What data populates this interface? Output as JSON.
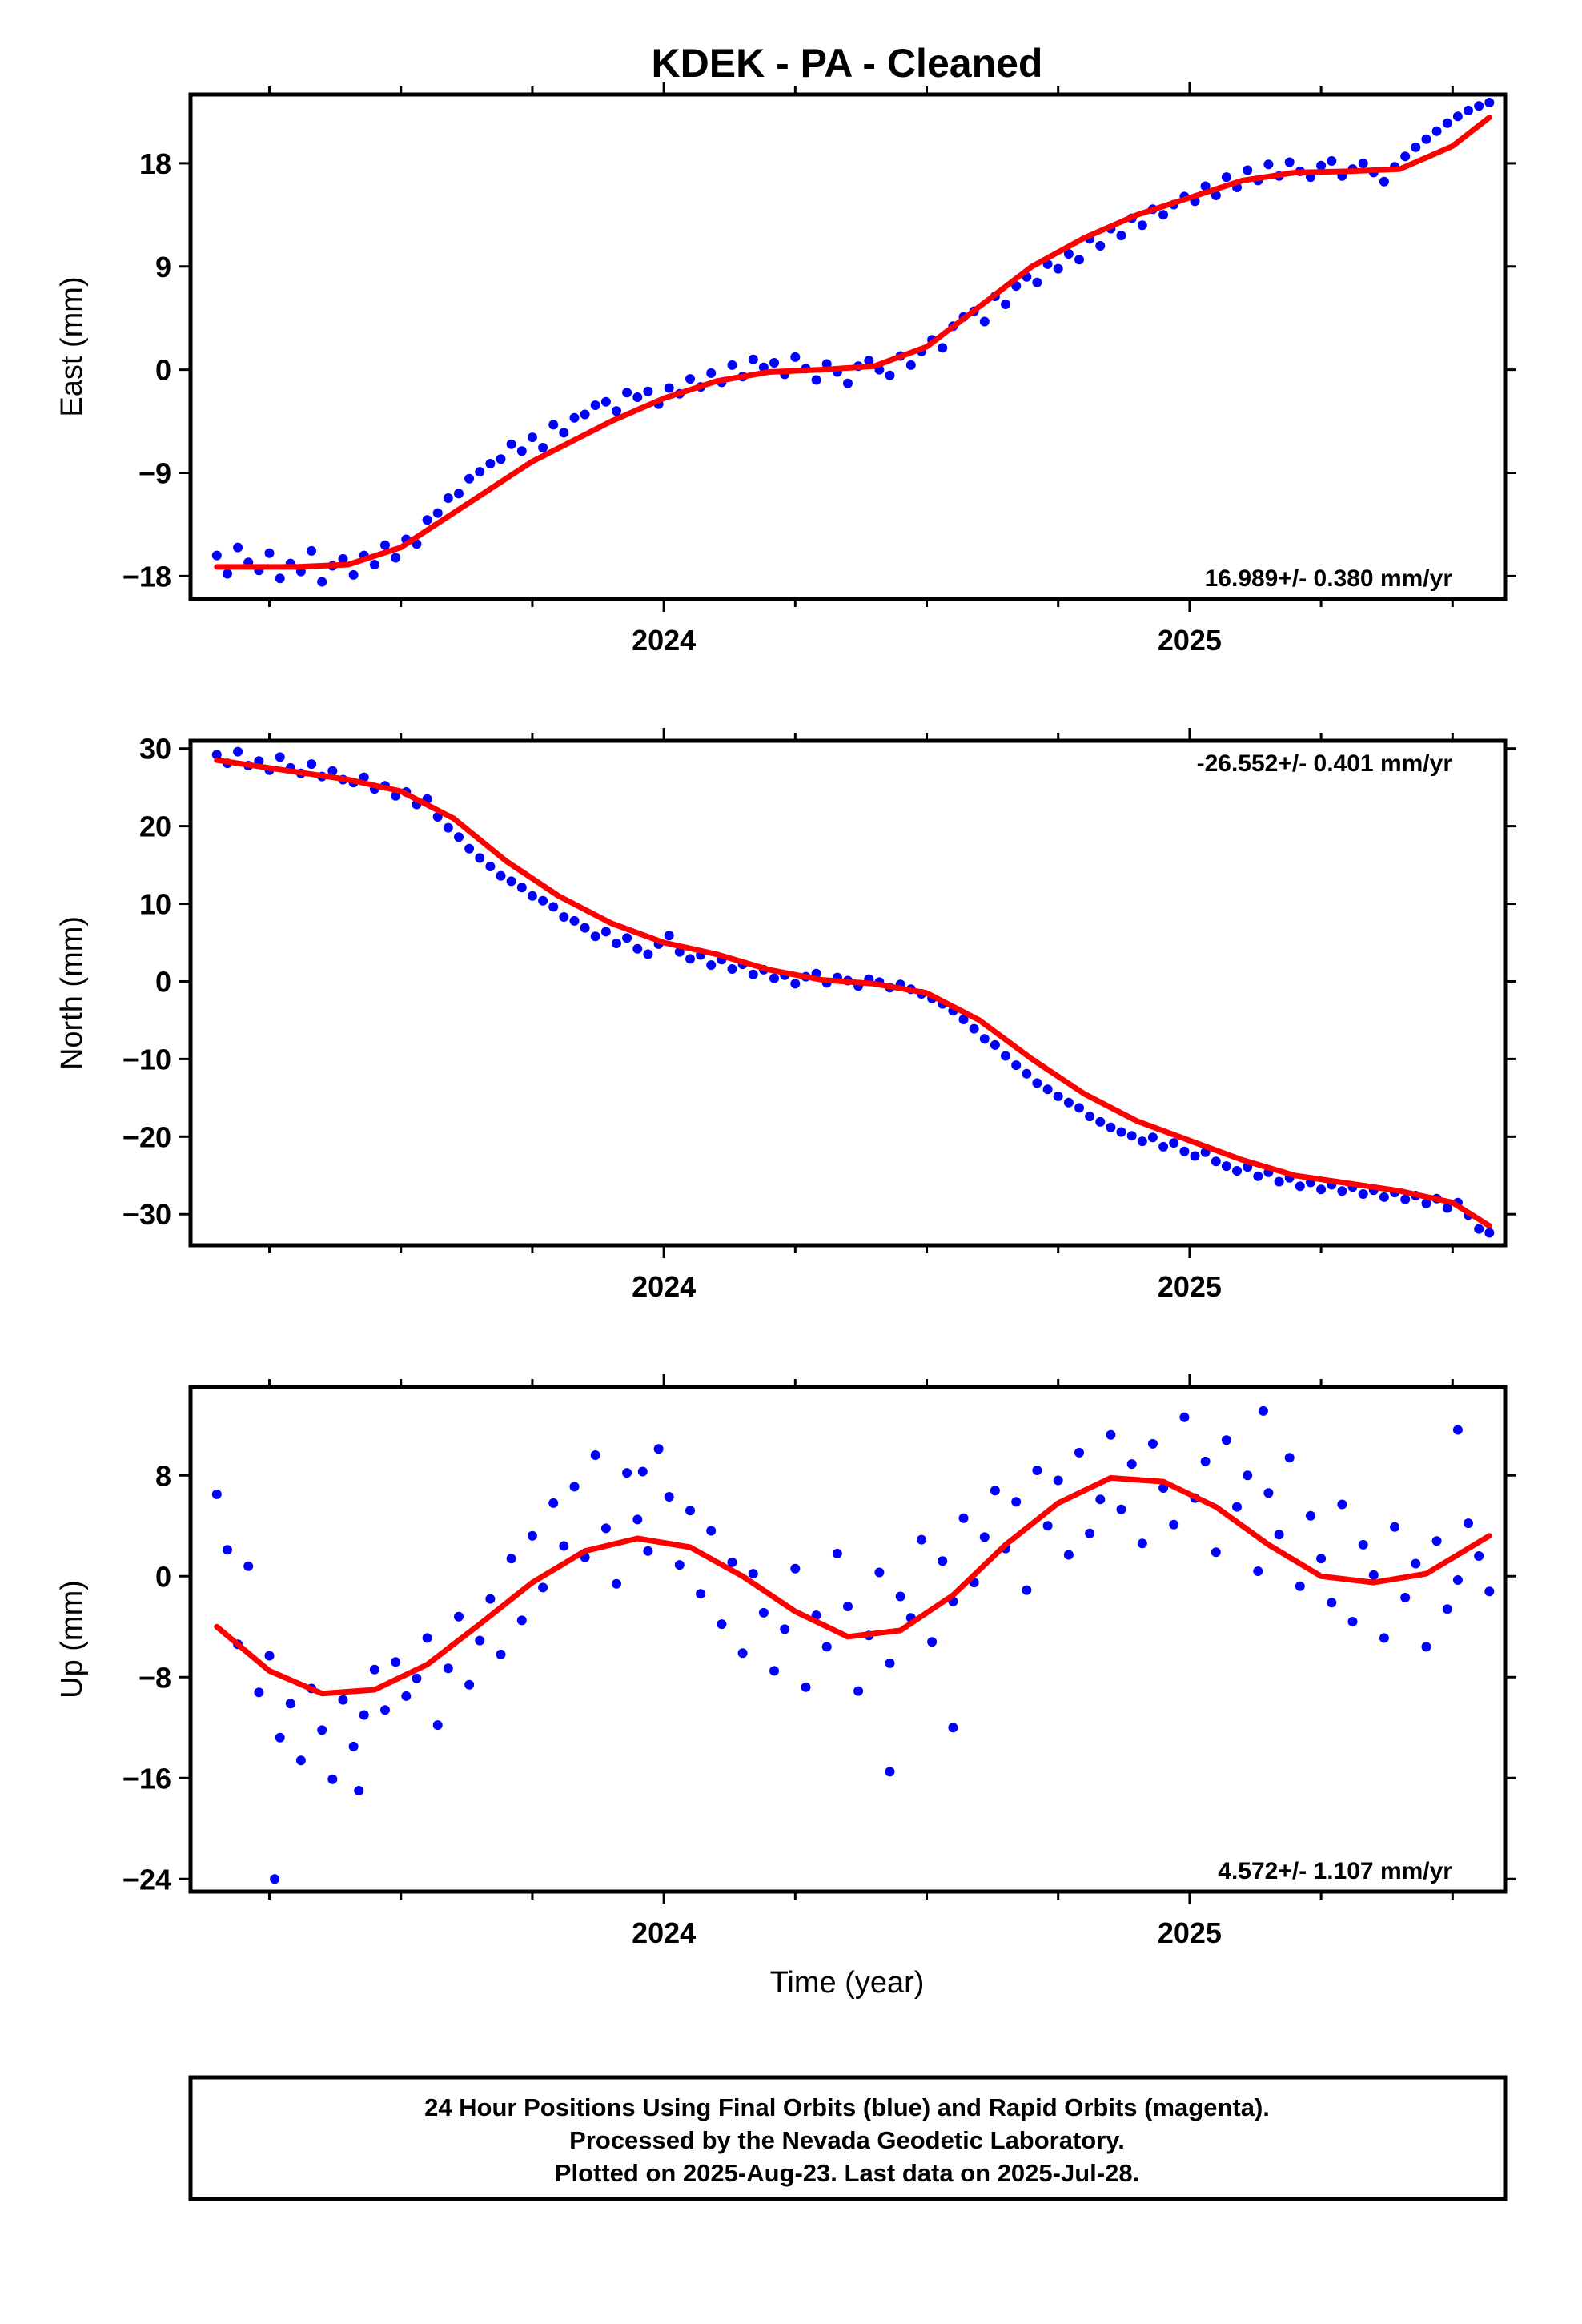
{
  "title": "KDEK  - PA - Cleaned",
  "colors": {
    "points": "#0000ff",
    "fit": "#ff0000",
    "frame": "#000000"
  },
  "chart_data": [
    {
      "type": "scatter",
      "ylabel": "East (mm)",
      "xlabel": "",
      "xlim": [
        2023.1,
        2025.6
      ],
      "ylim": [
        -20,
        24
      ],
      "yticks": [
        -18,
        -9,
        0,
        9,
        18
      ],
      "ytick_labels": [
        "−18",
        "−9",
        "0",
        "9",
        "18"
      ],
      "xticks": [
        2024,
        2025
      ],
      "xtick_labels": [
        "2024",
        "2025"
      ],
      "rate_label": "16.989+/- 0.380 mm/yr",
      "rate_position": "bottom-right",
      "fit": {
        "x": [
          2023.15,
          2023.3,
          2023.4,
          2023.5,
          2023.6,
          2023.75,
          2023.9,
          2024.0,
          2024.1,
          2024.2,
          2024.3,
          2024.4,
          2024.5,
          2024.6,
          2024.7,
          2024.8,
          2024.9,
          2025.0,
          2025.1,
          2025.2,
          2025.3,
          2025.4,
          2025.5,
          2025.57
        ],
        "y": [
          -17.2,
          -17.2,
          -17.0,
          -15.5,
          -12.5,
          -8.0,
          -4.5,
          -2.5,
          -1.0,
          -0.2,
          0.0,
          0.3,
          2.0,
          5.5,
          9.0,
          11.5,
          13.5,
          15.0,
          16.5,
          17.2,
          17.3,
          17.5,
          19.5,
          22.0
        ]
      },
      "points": {
        "x": [
          2023.15,
          2023.17,
          2023.19,
          2023.21,
          2023.23,
          2023.25,
          2023.27,
          2023.29,
          2023.31,
          2023.33,
          2023.35,
          2023.37,
          2023.39,
          2023.41,
          2023.43,
          2023.45,
          2023.47,
          2023.49,
          2023.51,
          2023.53,
          2023.55,
          2023.57,
          2023.59,
          2023.61,
          2023.63,
          2023.65,
          2023.67,
          2023.69,
          2023.71,
          2023.73,
          2023.75,
          2023.77,
          2023.79,
          2023.81,
          2023.83,
          2023.85,
          2023.87,
          2023.89,
          2023.91,
          2023.93,
          2023.95,
          2023.97,
          2023.99,
          2024.01,
          2024.03,
          2024.05,
          2024.07,
          2024.09,
          2024.11,
          2024.13,
          2024.15,
          2024.17,
          2024.19,
          2024.21,
          2024.23,
          2024.25,
          2024.27,
          2024.29,
          2024.31,
          2024.33,
          2024.35,
          2024.37,
          2024.39,
          2024.41,
          2024.43,
          2024.45,
          2024.47,
          2024.49,
          2024.51,
          2024.53,
          2024.55,
          2024.57,
          2024.59,
          2024.61,
          2024.63,
          2024.65,
          2024.67,
          2024.69,
          2024.71,
          2024.73,
          2024.75,
          2024.77,
          2024.79,
          2024.81,
          2024.83,
          2024.85,
          2024.87,
          2024.89,
          2024.91,
          2024.93,
          2024.95,
          2024.97,
          2024.99,
          2025.01,
          2025.03,
          2025.05,
          2025.07,
          2025.09,
          2025.11,
          2025.13,
          2025.15,
          2025.17,
          2025.19,
          2025.21,
          2025.23,
          2025.25,
          2025.27,
          2025.29,
          2025.31,
          2025.33,
          2025.35,
          2025.37,
          2025.39,
          2025.41,
          2025.43,
          2025.45,
          2025.47,
          2025.49,
          2025.51,
          2025.53,
          2025.55,
          2025.57
        ],
        "y": [
          -16.2,
          -17.8,
          -15.5,
          -16.8,
          -17.5,
          -16.0,
          -18.2,
          -16.9,
          -17.6,
          -15.8,
          -18.5,
          -17.1,
          -16.5,
          -17.9,
          -16.2,
          -17.0,
          -15.3,
          -16.4,
          -14.8,
          -15.2,
          -13.1,
          -12.5,
          -11.2,
          -10.8,
          -9.5,
          -8.9,
          -8.2,
          -7.8,
          -6.5,
          -7.1,
          -5.9,
          -6.8,
          -4.8,
          -5.5,
          -4.2,
          -3.9,
          -3.1,
          -2.8,
          -3.6,
          -2.0,
          -2.4,
          -1.9,
          -3.0,
          -1.6,
          -2.1,
          -0.8,
          -1.5,
          -0.3,
          -1.1,
          0.4,
          -0.6,
          0.9,
          0.2,
          0.6,
          -0.4,
          1.1,
          0.1,
          -0.9,
          0.5,
          -0.2,
          -1.2,
          0.3,
          0.8,
          0.0,
          -0.5,
          1.2,
          0.4,
          1.6,
          2.6,
          1.9,
          3.8,
          4.6,
          5.1,
          4.2,
          6.4,
          5.7,
          7.3,
          8.1,
          7.6,
          9.2,
          8.8,
          10.1,
          9.6,
          11.4,
          10.8,
          12.3,
          11.7,
          13.2,
          12.6,
          14.0,
          13.5,
          14.4,
          15.1,
          14.7,
          16.0,
          15.2,
          16.8,
          15.9,
          17.4,
          16.5,
          17.9,
          16.9,
          18.1,
          17.3,
          16.8,
          17.8,
          18.2,
          16.9,
          17.5,
          18.0,
          17.2,
          16.4,
          17.7,
          18.6,
          19.4,
          20.1,
          20.8,
          21.5,
          22.1,
          22.6,
          23.0,
          23.3
        ]
      }
    },
    {
      "type": "scatter",
      "ylabel": "North (mm)",
      "xlabel": "",
      "xlim": [
        2023.1,
        2025.6
      ],
      "ylim": [
        -34,
        31
      ],
      "yticks": [
        -30,
        -20,
        -10,
        0,
        10,
        20,
        30
      ],
      "ytick_labels": [
        "−30",
        "−20",
        "−10",
        "0",
        "10",
        "20",
        "30"
      ],
      "xticks": [
        2024,
        2025
      ],
      "xtick_labels": [
        "2024",
        "2025"
      ],
      "rate_label": "-26.552+/- 0.401 mm/yr",
      "rate_position": "top-right",
      "fit": {
        "x": [
          2023.15,
          2023.3,
          2023.4,
          2023.5,
          2023.6,
          2023.7,
          2023.8,
          2023.9,
          2024.0,
          2024.1,
          2024.2,
          2024.3,
          2024.4,
          2024.5,
          2024.6,
          2024.7,
          2024.8,
          2024.9,
          2025.0,
          2025.1,
          2025.2,
          2025.3,
          2025.4,
          2025.5,
          2025.57
        ],
        "y": [
          28.5,
          27.0,
          26.0,
          24.5,
          21.0,
          15.5,
          11.0,
          7.5,
          5.0,
          3.5,
          1.5,
          0.2,
          -0.3,
          -1.5,
          -5.0,
          -10.0,
          -14.5,
          -18.0,
          -20.5,
          -23.0,
          -25.0,
          -26.0,
          -27.0,
          -28.5,
          -31.5
        ]
      },
      "points": {
        "x": [
          2023.15,
          2023.17,
          2023.19,
          2023.21,
          2023.23,
          2023.25,
          2023.27,
          2023.29,
          2023.31,
          2023.33,
          2023.35,
          2023.37,
          2023.39,
          2023.41,
          2023.43,
          2023.45,
          2023.47,
          2023.49,
          2023.51,
          2023.53,
          2023.55,
          2023.57,
          2023.59,
          2023.61,
          2023.63,
          2023.65,
          2023.67,
          2023.69,
          2023.71,
          2023.73,
          2023.75,
          2023.77,
          2023.79,
          2023.81,
          2023.83,
          2023.85,
          2023.87,
          2023.89,
          2023.91,
          2023.93,
          2023.95,
          2023.97,
          2023.99,
          2024.01,
          2024.03,
          2024.05,
          2024.07,
          2024.09,
          2024.11,
          2024.13,
          2024.15,
          2024.17,
          2024.19,
          2024.21,
          2024.23,
          2024.25,
          2024.27,
          2024.29,
          2024.31,
          2024.33,
          2024.35,
          2024.37,
          2024.39,
          2024.41,
          2024.43,
          2024.45,
          2024.47,
          2024.49,
          2024.51,
          2024.53,
          2024.55,
          2024.57,
          2024.59,
          2024.61,
          2024.63,
          2024.65,
          2024.67,
          2024.69,
          2024.71,
          2024.73,
          2024.75,
          2024.77,
          2024.79,
          2024.81,
          2024.83,
          2024.85,
          2024.87,
          2024.89,
          2024.91,
          2024.93,
          2024.95,
          2024.97,
          2024.99,
          2025.01,
          2025.03,
          2025.05,
          2025.07,
          2025.09,
          2025.11,
          2025.13,
          2025.15,
          2025.17,
          2025.19,
          2025.21,
          2025.23,
          2025.25,
          2025.27,
          2025.29,
          2025.31,
          2025.33,
          2025.35,
          2025.37,
          2025.39,
          2025.41,
          2025.43,
          2025.45,
          2025.47,
          2025.49,
          2025.51,
          2025.53,
          2025.55,
          2025.57
        ],
        "y": [
          29.2,
          28.1,
          29.6,
          27.8,
          28.4,
          27.2,
          28.9,
          27.5,
          26.8,
          28.0,
          26.4,
          27.1,
          26.0,
          25.6,
          26.3,
          24.8,
          25.2,
          23.9,
          24.4,
          22.8,
          23.5,
          21.2,
          19.8,
          18.6,
          17.1,
          15.9,
          14.8,
          13.6,
          12.9,
          12.1,
          11.0,
          10.4,
          9.6,
          8.3,
          7.8,
          6.9,
          5.8,
          6.4,
          4.9,
          5.6,
          4.2,
          3.5,
          4.8,
          5.9,
          3.8,
          2.9,
          3.4,
          2.1,
          2.8,
          1.6,
          2.2,
          0.9,
          1.5,
          0.4,
          0.8,
          -0.3,
          0.6,
          1.0,
          -0.2,
          0.5,
          0.1,
          -0.6,
          0.3,
          -0.1,
          -0.8,
          -0.4,
          -1.0,
          -1.6,
          -2.2,
          -2.9,
          -3.8,
          -4.9,
          -6.1,
          -7.4,
          -8.2,
          -9.6,
          -10.8,
          -11.9,
          -13.1,
          -13.9,
          -14.8,
          -15.6,
          -16.3,
          -17.4,
          -18.1,
          -18.8,
          -19.4,
          -19.9,
          -20.6,
          -20.1,
          -21.3,
          -20.8,
          -21.9,
          -22.5,
          -22.0,
          -23.2,
          -23.8,
          -24.4,
          -23.9,
          -25.1,
          -24.6,
          -25.8,
          -25.3,
          -26.4,
          -25.9,
          -26.8,
          -26.2,
          -27.0,
          -26.5,
          -27.4,
          -26.9,
          -27.8,
          -27.2,
          -28.1,
          -27.6,
          -28.6,
          -28.0,
          -29.2,
          -28.5,
          -30.1,
          -31.9,
          -32.4
        ]
      }
    },
    {
      "type": "scatter",
      "ylabel": "Up (mm)",
      "xlabel": "Time (year)",
      "xlim": [
        2023.1,
        2025.6
      ],
      "ylim": [
        -25,
        15
      ],
      "yticks": [
        -24,
        -16,
        -8,
        0,
        8
      ],
      "ytick_labels": [
        "−24",
        "−16",
        "−8",
        "0",
        "8"
      ],
      "xticks": [
        2024,
        2025
      ],
      "xtick_labels": [
        "2024",
        "2025"
      ],
      "rate_label": "4.572+/- 1.107 mm/yr",
      "rate_position": "bottom-right",
      "fit": {
        "x": [
          2023.15,
          2023.25,
          2023.35,
          2023.45,
          2023.55,
          2023.65,
          2023.75,
          2023.85,
          2023.95,
          2024.05,
          2024.15,
          2024.25,
          2024.35,
          2024.45,
          2024.55,
          2024.65,
          2024.75,
          2024.85,
          2024.95,
          2025.05,
          2025.15,
          2025.25,
          2025.35,
          2025.45,
          2025.57
        ],
        "y": [
          -4.0,
          -7.5,
          -9.3,
          -9.0,
          -7.0,
          -3.8,
          -0.5,
          2.0,
          3.0,
          2.3,
          0.0,
          -2.8,
          -4.8,
          -4.3,
          -1.5,
          2.5,
          5.8,
          7.8,
          7.5,
          5.5,
          2.5,
          0.0,
          -0.5,
          0.2,
          3.2
        ]
      },
      "points": {
        "x": [
          2023.15,
          2023.17,
          2023.19,
          2023.21,
          2023.23,
          2023.25,
          2023.27,
          2023.29,
          2023.31,
          2023.33,
          2023.35,
          2023.37,
          2023.39,
          2023.41,
          2023.43,
          2023.45,
          2023.47,
          2023.49,
          2023.51,
          2023.53,
          2023.55,
          2023.57,
          2023.59,
          2023.61,
          2023.63,
          2023.65,
          2023.67,
          2023.69,
          2023.71,
          2023.73,
          2023.75,
          2023.77,
          2023.79,
          2023.81,
          2023.83,
          2023.85,
          2023.87,
          2023.89,
          2023.91,
          2023.93,
          2023.95,
          2023.97,
          2023.99,
          2024.01,
          2024.03,
          2024.05,
          2024.07,
          2024.09,
          2024.11,
          2024.13,
          2024.15,
          2024.17,
          2024.19,
          2024.21,
          2024.23,
          2024.25,
          2024.27,
          2024.29,
          2024.31,
          2024.33,
          2024.35,
          2024.37,
          2024.39,
          2024.41,
          2024.43,
          2024.45,
          2024.47,
          2024.49,
          2024.51,
          2024.53,
          2024.55,
          2024.57,
          2024.59,
          2024.61,
          2024.63,
          2024.65,
          2024.67,
          2024.69,
          2024.71,
          2024.73,
          2024.75,
          2024.77,
          2024.79,
          2024.81,
          2024.83,
          2024.85,
          2024.87,
          2024.89,
          2024.91,
          2024.93,
          2024.95,
          2024.97,
          2024.99,
          2025.01,
          2025.03,
          2025.05,
          2025.07,
          2025.09,
          2025.11,
          2025.13,
          2025.15,
          2025.17,
          2025.19,
          2025.21,
          2025.23,
          2025.25,
          2025.27,
          2025.29,
          2025.31,
          2025.33,
          2025.35,
          2025.37,
          2025.39,
          2025.41,
          2025.43,
          2025.45,
          2025.47,
          2025.49,
          2025.51,
          2025.53,
          2025.55,
          2025.57,
          2023.26,
          2023.42,
          2023.96,
          2024.43,
          2025.14,
          2025.51,
          2024.55
        ],
        "y": [
          6.5,
          2.1,
          -5.4,
          0.8,
          -9.2,
          -6.3,
          -12.8,
          -10.1,
          -14.6,
          -8.9,
          -12.2,
          -16.1,
          -9.8,
          -13.5,
          -11.0,
          -7.4,
          -10.6,
          -6.8,
          -9.5,
          -8.1,
          -4.9,
          -11.8,
          -7.3,
          -3.2,
          -8.6,
          -5.1,
          -1.8,
          -6.2,
          1.4,
          -3.5,
          3.2,
          -0.9,
          5.8,
          2.4,
          7.1,
          1.5,
          9.6,
          3.8,
          -0.6,
          8.2,
          4.5,
          2.0,
          10.1,
          6.3,
          0.9,
          5.2,
          -1.4,
          3.6,
          -3.8,
          1.1,
          -6.1,
          0.2,
          -2.9,
          -7.5,
          -4.2,
          0.6,
          -8.8,
          -3.1,
          -5.6,
          1.8,
          -2.4,
          -9.1,
          -4.7,
          0.3,
          -6.9,
          -1.6,
          -3.3,
          2.9,
          -5.2,
          1.2,
          -2.0,
          4.6,
          -0.5,
          3.1,
          6.8,
          2.2,
          5.9,
          -1.1,
          8.4,
          4.0,
          7.6,
          1.7,
          9.8,
          3.4,
          6.1,
          11.2,
          5.3,
          8.9,
          2.6,
          10.5,
          7.0,
          4.1,
          12.6,
          6.2,
          9.1,
          1.9,
          10.8,
          5.5,
          8.0,
          0.4,
          6.6,
          3.3,
          9.4,
          -0.8,
          4.8,
          1.4,
          -2.1,
          5.7,
          -3.6,
          2.5,
          0.1,
          -4.9,
          3.9,
          -1.7,
          1.0,
          -5.6,
          2.8,
          -2.6,
          -0.3,
          4.2,
          1.6,
          -1.2,
          -24.0,
          -17.0,
          8.3,
          -15.5,
          13.1,
          11.6,
          -12.0
        ]
      }
    }
  ],
  "footer": {
    "line1": "24 Hour Positions Using Final Orbits (blue) and Rapid Orbits (magenta).",
    "line2": "Processed by the Nevada Geodetic Laboratory.",
    "line3": "Plotted on 2025-Aug-23. Last data on 2025-Jul-28."
  }
}
